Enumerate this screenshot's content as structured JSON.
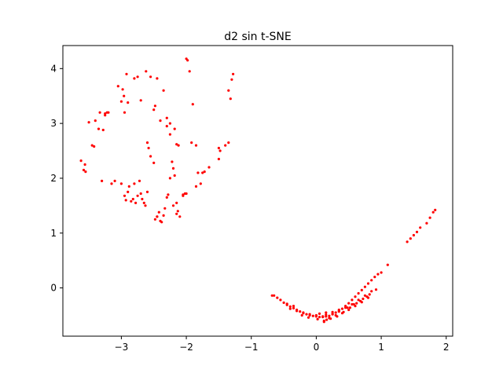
{
  "chart_data": {
    "type": "scatter",
    "title": "d2 sin t-SNE",
    "xlabel": "",
    "ylabel": "",
    "xlim": [
      -3.9,
      2.1
    ],
    "ylim": [
      -0.88,
      4.42
    ],
    "xticks": [
      -3,
      -2,
      -1,
      0,
      1,
      2
    ],
    "xtick_labels": [
      "−3",
      "−2",
      "−1",
      "0",
      "1",
      "2"
    ],
    "yticks": [
      0,
      1,
      2,
      3,
      4
    ],
    "ytick_labels": [
      "0",
      "1",
      "2",
      "3",
      "4"
    ],
    "grid": false,
    "legend": "none",
    "marker_color": "#ff0000",
    "series": [
      {
        "x": [
          -3.62,
          -3.58,
          -3.56,
          -3.5,
          -3.45,
          -3.4,
          -3.35,
          -3.33,
          -3.3,
          -3.25,
          -3.2,
          -3.15,
          -3.05,
          -3.0,
          -2.98,
          -2.96,
          -2.95,
          -2.93,
          -2.9,
          -2.88,
          -2.85,
          -2.82,
          -2.8,
          -2.78,
          -2.75,
          -2.72,
          -2.7,
          -2.68,
          -2.65,
          -2.63,
          -2.6,
          -2.58,
          -2.55,
          -2.5,
          -2.48,
          -2.45,
          -2.42,
          -2.4,
          -2.38,
          -2.35,
          -2.33,
          -2.3,
          -2.28,
          -2.25,
          -2.22,
          -2.2,
          -2.18,
          -2.15,
          -2.13,
          -2.1,
          -2.05,
          -2.0,
          -1.98,
          -1.95,
          -1.9,
          -1.85,
          -1.82,
          -1.78,
          -1.72,
          -1.65,
          -1.5,
          -1.48,
          -1.4,
          -1.35,
          -1.3,
          -1.28,
          -2.62,
          -2.55,
          -2.45,
          -2.92,
          -2.9,
          -2.7,
          -2.35,
          -2.3,
          -2.25,
          -2.18,
          -2.15,
          -3.1,
          -3.0,
          -2.6,
          -2.45,
          -2.2,
          -2.15,
          -2.0,
          -1.85,
          -1.75,
          -3.25,
          -3.22,
          -3.28,
          -2.95,
          -2.8,
          -2.75,
          -2.5,
          -2.48,
          -2.4,
          -2.3,
          -2.25,
          -2.12,
          -3.42,
          -3.55,
          -2.05,
          -2.02,
          -1.92,
          -1.5,
          -1.35,
          -1.32
        ],
        "y": [
          2.32,
          2.15,
          2.25,
          3.02,
          2.6,
          3.05,
          2.9,
          3.2,
          1.95,
          3.15,
          3.2,
          1.9,
          3.68,
          3.4,
          3.62,
          3.5,
          1.68,
          1.6,
          1.75,
          1.85,
          1.58,
          1.62,
          1.9,
          1.55,
          1.68,
          1.95,
          1.72,
          1.62,
          1.55,
          1.5,
          2.65,
          2.55,
          2.4,
          2.28,
          1.25,
          1.3,
          1.38,
          1.22,
          1.2,
          1.32,
          1.45,
          1.65,
          1.7,
          2.0,
          2.3,
          2.18,
          2.05,
          1.55,
          1.4,
          1.3,
          1.7,
          4.18,
          4.15,
          3.95,
          3.35,
          2.6,
          2.1,
          1.9,
          2.12,
          2.2,
          2.35,
          2.5,
          2.6,
          2.65,
          3.8,
          3.9,
          3.95,
          3.85,
          3.82,
          3.9,
          3.38,
          3.42,
          3.6,
          3.1,
          3.0,
          2.9,
          2.62,
          1.95,
          1.9,
          1.75,
          1.3,
          1.5,
          1.35,
          1.72,
          1.85,
          2.1,
          3.18,
          3.2,
          2.88,
          3.2,
          3.82,
          3.85,
          3.25,
          3.32,
          3.05,
          2.95,
          2.8,
          2.6,
          2.58,
          2.12,
          1.68,
          1.72,
          2.65,
          2.55,
          3.6,
          3.45
        ]
      },
      {
        "x": [
          -0.68,
          -0.65,
          -0.6,
          -0.55,
          -0.5,
          -0.45,
          -0.4,
          -0.35,
          -0.3,
          -0.25,
          -0.2,
          -0.15,
          -0.1,
          -0.05,
          0.0,
          0.05,
          0.1,
          0.15,
          0.2,
          0.25,
          0.3,
          0.35,
          0.4,
          0.45,
          0.5,
          0.55,
          0.6,
          0.65,
          0.7,
          0.75,
          0.8,
          0.85,
          0.9,
          0.95,
          1.0,
          1.1,
          -0.4,
          -0.3,
          -0.2,
          -0.1,
          0.0,
          0.1,
          0.2,
          0.3,
          0.4,
          0.5,
          0.6,
          0.7,
          0.8,
          -0.22,
          -0.12,
          0.02,
          0.12,
          0.22,
          0.32,
          0.42,
          0.52,
          0.62,
          0.72,
          0.82,
          0.92,
          0.12,
          0.16,
          1.4,
          1.45,
          1.5,
          1.55,
          1.6,
          1.7,
          1.75,
          1.8,
          1.83,
          -0.45,
          -0.35,
          0.05,
          0.15,
          0.25,
          0.35,
          0.45,
          0.55,
          0.65,
          0.75,
          0.85,
          0.15,
          0.25,
          0.35,
          0.48,
          0.58,
          0.68,
          0.78
        ],
        "y": [
          -0.14,
          -0.14,
          -0.18,
          -0.22,
          -0.27,
          -0.31,
          -0.34,
          -0.37,
          -0.4,
          -0.43,
          -0.46,
          -0.48,
          -0.5,
          -0.51,
          -0.52,
          -0.53,
          -0.53,
          -0.52,
          -0.51,
          -0.48,
          -0.45,
          -0.42,
          -0.38,
          -0.33,
          -0.28,
          -0.22,
          -0.16,
          -0.1,
          -0.04,
          0.02,
          0.08,
          0.14,
          0.2,
          0.25,
          0.28,
          0.42,
          -0.38,
          -0.42,
          -0.45,
          -0.48,
          -0.5,
          -0.52,
          -0.55,
          -0.5,
          -0.46,
          -0.4,
          -0.33,
          -0.26,
          -0.18,
          -0.5,
          -0.54,
          -0.57,
          -0.6,
          -0.56,
          -0.52,
          -0.44,
          -0.36,
          -0.28,
          -0.2,
          -0.12,
          -0.03,
          -0.62,
          -0.58,
          0.84,
          0.9,
          0.96,
          1.02,
          1.1,
          1.18,
          1.28,
          1.38,
          1.42,
          -0.29,
          -0.33,
          -0.47,
          -0.49,
          -0.47,
          -0.43,
          -0.36,
          -0.3,
          -0.22,
          -0.14,
          -0.06,
          -0.45,
          -0.44,
          -0.4,
          -0.36,
          -0.3,
          -0.24,
          -0.16
        ]
      }
    ]
  }
}
